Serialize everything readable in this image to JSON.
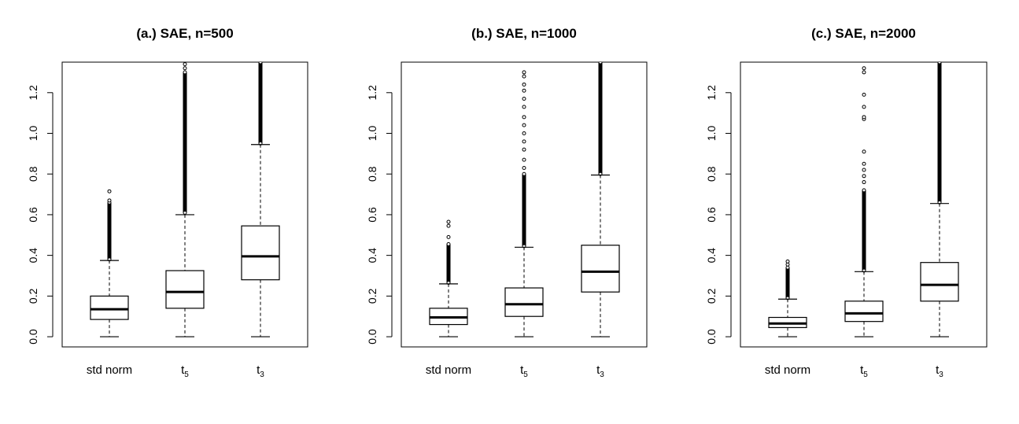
{
  "chart_data": [
    {
      "type": "boxplot",
      "title": "(a.) SAE, n=500",
      "ylim": [
        -0.05,
        1.35
      ],
      "yticks": [
        "0.0",
        "0.2",
        "0.4",
        "0.6",
        "0.8",
        "1.0",
        "1.2"
      ],
      "categories": [
        {
          "main": "std norm",
          "sub": ""
        },
        {
          "main": "t",
          "sub": "5"
        },
        {
          "main": "t",
          "sub": "3"
        }
      ],
      "boxes": [
        {
          "whisker_low": 0.0,
          "q1": 0.085,
          "median": 0.135,
          "q3": 0.2,
          "whisker_high": 0.375,
          "outlier_min": 0.38,
          "outlier_max": 0.66,
          "outlier_extra": [
            0.67,
            0.715
          ]
        },
        {
          "whisker_low": 0.0,
          "q1": 0.14,
          "median": 0.22,
          "q3": 0.325,
          "whisker_high": 0.6,
          "outlier_min": 0.61,
          "outlier_max": 1.3,
          "outlier_extra": [
            1.32,
            1.34
          ]
        },
        {
          "whisker_low": 0.0,
          "q1": 0.28,
          "median": 0.395,
          "q3": 0.545,
          "whisker_high": 0.945,
          "outlier_min": 0.95,
          "outlier_max": 1.35,
          "outlier_extra": []
        }
      ]
    },
    {
      "type": "boxplot",
      "title": "(b.) SAE, n=1000",
      "ylim": [
        -0.05,
        1.35
      ],
      "yticks": [
        "0.0",
        "0.2",
        "0.4",
        "0.6",
        "0.8",
        "1.0",
        "1.2"
      ],
      "categories": [
        {
          "main": "std norm",
          "sub": ""
        },
        {
          "main": "t",
          "sub": "5"
        },
        {
          "main": "t",
          "sub": "3"
        }
      ],
      "boxes": [
        {
          "whisker_low": 0.0,
          "q1": 0.06,
          "median": 0.095,
          "q3": 0.14,
          "whisker_high": 0.26,
          "outlier_min": 0.265,
          "outlier_max": 0.455,
          "outlier_extra": [
            0.49,
            0.545,
            0.565
          ]
        },
        {
          "whisker_low": 0.0,
          "q1": 0.1,
          "median": 0.16,
          "q3": 0.24,
          "whisker_high": 0.44,
          "outlier_min": 0.445,
          "outlier_max": 0.8,
          "outlier_extra": [
            0.83,
            0.87,
            0.92,
            0.96,
            1.0,
            1.04,
            1.08,
            1.13,
            1.17,
            1.21,
            1.24,
            1.28,
            1.3
          ]
        },
        {
          "whisker_low": 0.0,
          "q1": 0.22,
          "median": 0.32,
          "q3": 0.45,
          "whisker_high": 0.795,
          "outlier_min": 0.8,
          "outlier_max": 1.35,
          "outlier_extra": []
        }
      ]
    },
    {
      "type": "boxplot",
      "title": "(c.) SAE, n=2000",
      "ylim": [
        -0.05,
        1.35
      ],
      "yticks": [
        "0.0",
        "0.2",
        "0.4",
        "0.6",
        "0.8",
        "1.0",
        "1.2"
      ],
      "categories": [
        {
          "main": "std norm",
          "sub": ""
        },
        {
          "main": "t",
          "sub": "5"
        },
        {
          "main": "t",
          "sub": "3"
        }
      ],
      "boxes": [
        {
          "whisker_low": 0.0,
          "q1": 0.045,
          "median": 0.065,
          "q3": 0.095,
          "whisker_high": 0.185,
          "outlier_min": 0.19,
          "outlier_max": 0.34,
          "outlier_extra": [
            0.355,
            0.37
          ]
        },
        {
          "whisker_low": 0.0,
          "q1": 0.075,
          "median": 0.115,
          "q3": 0.175,
          "whisker_high": 0.32,
          "outlier_min": 0.325,
          "outlier_max": 0.72,
          "outlier_extra": [
            0.76,
            0.79,
            0.82,
            0.85,
            0.91,
            1.07,
            1.08,
            1.13,
            1.19,
            1.3,
            1.32
          ]
        },
        {
          "whisker_low": 0.0,
          "q1": 0.175,
          "median": 0.255,
          "q3": 0.365,
          "whisker_high": 0.655,
          "outlier_min": 0.66,
          "outlier_max": 1.35,
          "outlier_extra": []
        }
      ]
    }
  ]
}
